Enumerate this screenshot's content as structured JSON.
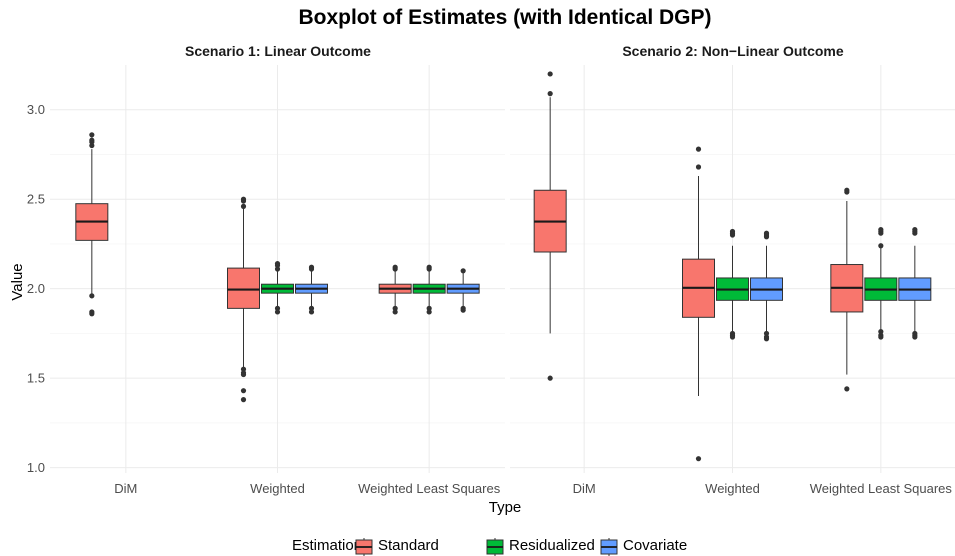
{
  "chart_data": {
    "type": "boxplot",
    "title": "Boxplot of Estimates (with Identical DGP)",
    "xlabel": "Type",
    "ylabel": "Value",
    "ylim": [
      0.97,
      3.25
    ],
    "yticks": [
      1.0,
      1.5,
      2.0,
      2.5,
      3.0
    ],
    "tick_labels": [
      "1.0",
      "1.5",
      "2.0",
      "2.5",
      "3.0"
    ],
    "categories": [
      "DiM",
      "Weighted",
      "Weighted Least Squares"
    ],
    "legend": {
      "title": "Estimation",
      "position": "bottom",
      "entries": [
        {
          "name": "Standard",
          "color": "#F8766D"
        },
        {
          "name": "Residualized",
          "color": "#00BA38"
        },
        {
          "name": "Covariate",
          "color": "#619CFF"
        }
      ]
    },
    "facets": [
      {
        "title": "Scenario 1: Linear Outcome",
        "boxes": [
          {
            "category": "DiM",
            "estimation": "Standard",
            "q1": 2.27,
            "median": 2.375,
            "q3": 2.475,
            "whisker_low": 1.97,
            "whisker_high": 2.78,
            "outliers": [
              1.96,
              1.87,
              1.86,
              2.8,
              2.82,
              2.83,
              2.86
            ]
          },
          {
            "category": "Weighted",
            "estimation": "Standard",
            "q1": 1.89,
            "median": 1.995,
            "q3": 2.115,
            "whisker_low": 1.56,
            "whisker_high": 2.45,
            "outliers": [
              1.55,
              1.53,
              1.52,
              1.43,
              1.38,
              2.46,
              2.49,
              2.5
            ]
          },
          {
            "category": "Weighted",
            "estimation": "Residualized",
            "q1": 1.975,
            "median": 2.0,
            "q3": 2.025,
            "whisker_low": 1.9,
            "whisker_high": 2.1,
            "outliers": [
              1.89,
              1.87,
              2.11,
              2.13,
              2.14
            ]
          },
          {
            "category": "Weighted",
            "estimation": "Covariate",
            "q1": 1.975,
            "median": 2.0,
            "q3": 2.025,
            "whisker_low": 1.9,
            "whisker_high": 2.1,
            "outliers": [
              1.89,
              1.87,
              2.11,
              2.12
            ]
          },
          {
            "category": "Weighted Least Squares",
            "estimation": "Standard",
            "q1": 1.975,
            "median": 2.0,
            "q3": 2.025,
            "whisker_low": 1.9,
            "whisker_high": 2.1,
            "outliers": [
              1.89,
              1.87,
              2.11,
              2.12
            ]
          },
          {
            "category": "Weighted Least Squares",
            "estimation": "Residualized",
            "q1": 1.975,
            "median": 2.0,
            "q3": 2.025,
            "whisker_low": 1.9,
            "whisker_high": 2.1,
            "outliers": [
              1.89,
              1.87,
              2.11,
              2.12
            ]
          },
          {
            "category": "Weighted Least Squares",
            "estimation": "Covariate",
            "q1": 1.975,
            "median": 2.0,
            "q3": 2.025,
            "whisker_low": 1.9,
            "whisker_high": 2.1,
            "outliers": [
              1.89,
              1.88,
              2.1
            ]
          }
        ]
      },
      {
        "title": "Scenario 2: Non−Linear Outcome",
        "boxes": [
          {
            "category": "DiM",
            "estimation": "Standard",
            "q1": 2.205,
            "median": 2.375,
            "q3": 2.55,
            "whisker_low": 1.75,
            "whisker_high": 3.07,
            "outliers": [
              1.5,
              3.09,
              3.2
            ]
          },
          {
            "category": "Weighted",
            "estimation": "Standard",
            "q1": 1.84,
            "median": 2.005,
            "q3": 2.165,
            "whisker_low": 1.4,
            "whisker_high": 2.63,
            "outliers": [
              1.05,
              2.68,
              2.78
            ]
          },
          {
            "category": "Weighted",
            "estimation": "Residualized",
            "q1": 1.935,
            "median": 1.995,
            "q3": 2.06,
            "whisker_low": 1.76,
            "whisker_high": 2.24,
            "outliers": [
              1.75,
              1.74,
              1.73,
              2.3,
              2.31,
              2.32
            ]
          },
          {
            "category": "Weighted",
            "estimation": "Covariate",
            "q1": 1.935,
            "median": 1.995,
            "q3": 2.06,
            "whisker_low": 1.76,
            "whisker_high": 2.24,
            "outliers": [
              1.75,
              1.73,
              1.72,
              2.29,
              2.3,
              2.31
            ]
          },
          {
            "category": "Weighted Least Squares",
            "estimation": "Standard",
            "q1": 1.87,
            "median": 2.005,
            "q3": 2.135,
            "whisker_low": 1.52,
            "whisker_high": 2.49,
            "outliers": [
              1.44,
              2.54,
              2.55
            ]
          },
          {
            "category": "Weighted Least Squares",
            "estimation": "Residualized",
            "q1": 1.935,
            "median": 1.995,
            "q3": 2.06,
            "whisker_low": 1.77,
            "whisker_high": 2.24,
            "outliers": [
              1.76,
              1.74,
              1.73,
              2.24,
              2.31,
              2.32,
              2.33
            ]
          },
          {
            "category": "Weighted Least Squares",
            "estimation": "Covariate",
            "q1": 1.935,
            "median": 1.995,
            "q3": 2.06,
            "whisker_low": 1.76,
            "whisker_high": 2.24,
            "outliers": [
              1.75,
              1.74,
              1.73,
              2.31,
              2.32,
              2.33
            ]
          }
        ]
      }
    ]
  }
}
